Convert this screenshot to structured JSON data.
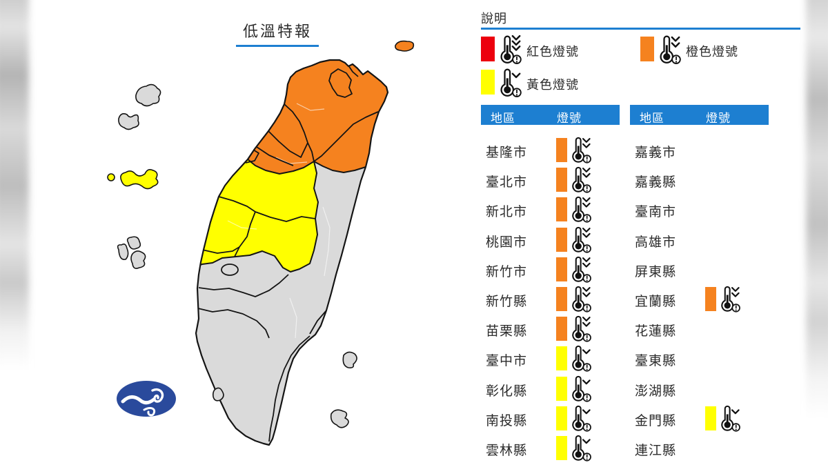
{
  "map": {
    "title": "低溫特報",
    "orange_counties": [
      "基隆市",
      "臺北市",
      "新北市",
      "桃園市",
      "新竹市",
      "新竹縣",
      "苗栗縣",
      "宜蘭縣"
    ],
    "yellow_counties": [
      "臺中市",
      "彰化縣",
      "南投縣",
      "雲林縣",
      "金門縣"
    ],
    "gray_counties": [
      "嘉義市",
      "嘉義縣",
      "臺南市",
      "高雄市",
      "屏東縣",
      "花蓮縣",
      "臺東縣",
      "澎湖縣",
      "連江縣"
    ]
  },
  "legend": {
    "heading": "說明",
    "items": [
      {
        "label": "紅色燈號",
        "key": "red",
        "chevrons": 3
      },
      {
        "label": "橙色燈號",
        "key": "orange",
        "chevrons": 2
      },
      {
        "label": "黃色燈號",
        "key": "yellow",
        "chevrons": 1
      }
    ]
  },
  "table": {
    "region_header": "地區",
    "signal_header": "燈號",
    "left_rows": [
      {
        "region": "基隆市",
        "signal": "orange"
      },
      {
        "region": "臺北市",
        "signal": "orange"
      },
      {
        "region": "新北市",
        "signal": "orange"
      },
      {
        "region": "桃園市",
        "signal": "orange"
      },
      {
        "region": "新竹市",
        "signal": "orange"
      },
      {
        "region": "新竹縣",
        "signal": "orange"
      },
      {
        "region": "苗栗縣",
        "signal": "orange"
      },
      {
        "region": "臺中市",
        "signal": "yellow"
      },
      {
        "region": "彰化縣",
        "signal": "yellow"
      },
      {
        "region": "南投縣",
        "signal": "yellow"
      },
      {
        "region": "雲林縣",
        "signal": "yellow"
      }
    ],
    "right_rows": [
      {
        "region": "嘉義市",
        "signal": null
      },
      {
        "region": "嘉義縣",
        "signal": null
      },
      {
        "region": "臺南市",
        "signal": null
      },
      {
        "region": "高雄市",
        "signal": null
      },
      {
        "region": "屏東縣",
        "signal": null
      },
      {
        "region": "宜蘭縣",
        "signal": "orange"
      },
      {
        "region": "花蓮縣",
        "signal": null
      },
      {
        "region": "臺東縣",
        "signal": null
      },
      {
        "region": "澎湖縣",
        "signal": null
      },
      {
        "region": "金門縣",
        "signal": "yellow"
      },
      {
        "region": "連江縣",
        "signal": null
      }
    ]
  },
  "colors": {
    "red": "#ec000e",
    "orange": "#f5821f",
    "yellow": "#ffff00",
    "header_blue": "#1d7fd1",
    "county_gray": "#dadada",
    "border_black": "#141414",
    "logo_blue": "#2a4a9c",
    "text": "#2b2b2b"
  },
  "signal_chevrons": {
    "red": 3,
    "orange": 2,
    "yellow": 1
  }
}
